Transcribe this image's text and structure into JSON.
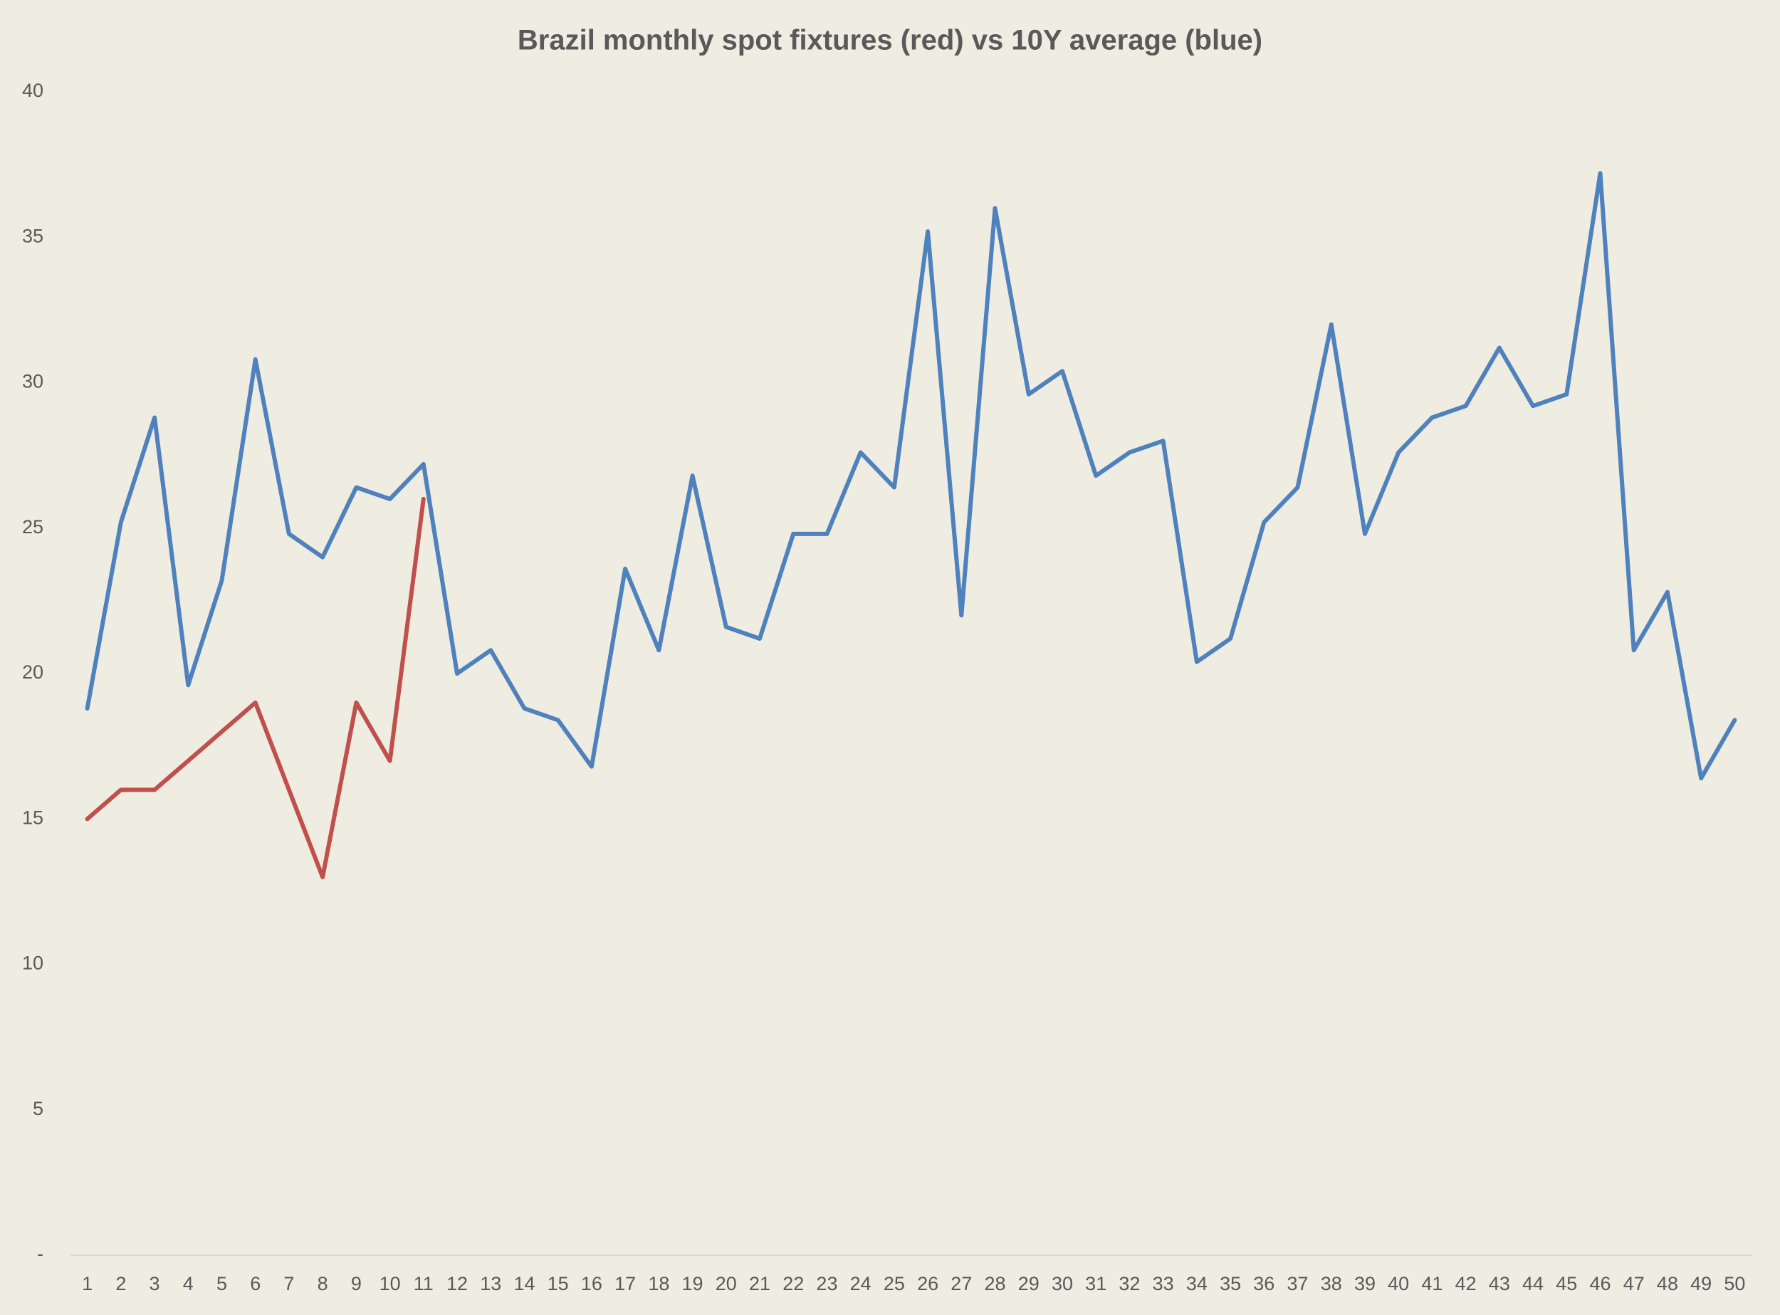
{
  "chart_data": {
    "type": "line",
    "title": "Brazil monthly spot fixtures (red)  vs 10Y average (blue)",
    "categories": [
      "1",
      "2",
      "3",
      "4",
      "5",
      "6",
      "7",
      "8",
      "9",
      "10",
      "11",
      "12",
      "13",
      "14",
      "15",
      "16",
      "17",
      "18",
      "19",
      "20",
      "21",
      "22",
      "23",
      "24",
      "25",
      "26",
      "27",
      "28",
      "29",
      "30",
      "31",
      "32",
      "33",
      "34",
      "35",
      "36",
      "37",
      "38",
      "39",
      "40",
      "41",
      "42",
      "43",
      "44",
      "45",
      "46",
      "47",
      "48",
      "49",
      "50"
    ],
    "series": [
      {
        "color": "#4f81bd",
        "values": [
          18.8,
          25.2,
          28.8,
          19.6,
          23.2,
          30.8,
          24.8,
          24.0,
          26.4,
          26.0,
          27.2,
          20.0,
          20.8,
          18.8,
          18.4,
          16.8,
          23.6,
          20.8,
          26.8,
          21.6,
          21.2,
          24.8,
          24.8,
          27.6,
          26.4,
          35.2,
          22.0,
          36.0,
          29.6,
          30.4,
          26.8,
          27.6,
          28.0,
          20.4,
          21.2,
          25.2,
          26.4,
          32.0,
          24.8,
          27.6,
          28.8,
          29.2,
          31.2,
          29.2,
          29.6,
          37.2,
          20.8,
          22.8,
          16.4,
          18.4
        ]
      },
      {
        "color": "#c0504d",
        "values": [
          15,
          16,
          16,
          17,
          18,
          19,
          16,
          13,
          19,
          17,
          26,
          null,
          null,
          null,
          null,
          null,
          null,
          null,
          null,
          null,
          null,
          null,
          null,
          null,
          null,
          null,
          null,
          null,
          null,
          null,
          null,
          null,
          null,
          null,
          null,
          null,
          null,
          null,
          null,
          null,
          null,
          null,
          null,
          null,
          null,
          null,
          null,
          null,
          null,
          null
        ]
      }
    ],
    "ylim": [
      0,
      40
    ],
    "yticks": [
      {
        "value": 0,
        "label": "-"
      },
      5,
      10,
      15,
      20,
      25,
      30,
      35,
      40
    ]
  }
}
